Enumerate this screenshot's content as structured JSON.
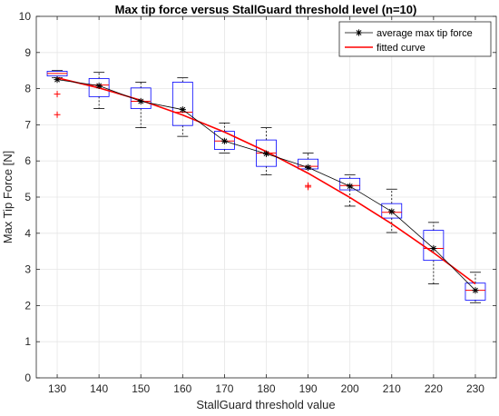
{
  "chart_data": {
    "type": "box",
    "title": "Max tip force versus StallGuard threshold level (n=10)",
    "xlabel": "StallGuard threshold value",
    "ylabel": "Max Tip Force [N]",
    "xlim": [
      125,
      235
    ],
    "ylim": [
      0,
      10
    ],
    "x_ticks": [
      130,
      140,
      150,
      160,
      170,
      180,
      190,
      200,
      210,
      220,
      230
    ],
    "y_ticks": [
      0,
      1,
      2,
      3,
      4,
      5,
      6,
      7,
      8,
      9,
      10
    ],
    "grid": true,
    "legend_position": "top-right",
    "boxes": [
      {
        "x": 130,
        "q1": 8.35,
        "median": 8.42,
        "q3": 8.48,
        "whisker_low": 8.3,
        "whisker_high": 8.5,
        "outliers": [
          7.85,
          7.28
        ]
      },
      {
        "x": 140,
        "q1": 7.78,
        "median": 8.1,
        "q3": 8.28,
        "whisker_low": 7.45,
        "whisker_high": 8.45,
        "outliers": []
      },
      {
        "x": 150,
        "q1": 7.45,
        "median": 7.65,
        "q3": 8.02,
        "whisker_low": 6.92,
        "whisker_high": 8.18,
        "outliers": []
      },
      {
        "x": 160,
        "q1": 6.98,
        "median": 7.35,
        "q3": 8.18,
        "whisker_low": 6.68,
        "whisker_high": 8.3,
        "outliers": []
      },
      {
        "x": 170,
        "q1": 6.32,
        "median": 6.55,
        "q3": 6.82,
        "whisker_low": 6.22,
        "whisker_high": 7.05,
        "outliers": []
      },
      {
        "x": 180,
        "q1": 5.85,
        "median": 6.22,
        "q3": 6.58,
        "whisker_low": 5.62,
        "whisker_high": 6.92,
        "outliers": []
      },
      {
        "x": 190,
        "q1": 5.78,
        "median": 5.85,
        "q3": 6.05,
        "whisker_low": 5.78,
        "whisker_high": 6.22,
        "outliers": [
          5.32,
          5.28
        ]
      },
      {
        "x": 200,
        "q1": 5.2,
        "median": 5.32,
        "q3": 5.52,
        "whisker_low": 4.75,
        "whisker_high": 5.62,
        "outliers": []
      },
      {
        "x": 210,
        "q1": 4.42,
        "median": 4.58,
        "q3": 4.82,
        "whisker_low": 4.02,
        "whisker_high": 5.22,
        "outliers": []
      },
      {
        "x": 220,
        "q1": 3.25,
        "median": 3.58,
        "q3": 4.08,
        "whisker_low": 2.6,
        "whisker_high": 4.3,
        "outliers": []
      },
      {
        "x": 230,
        "q1": 2.15,
        "median": 2.42,
        "q3": 2.62,
        "whisker_low": 2.08,
        "whisker_high": 2.92,
        "outliers": []
      }
    ],
    "series": [
      {
        "name": "average max tip force",
        "color": "#000000",
        "marker": "asterisk",
        "x": [
          130,
          140,
          150,
          160,
          170,
          180,
          190,
          200,
          210,
          220,
          230
        ],
        "y": [
          8.25,
          8.08,
          7.65,
          7.42,
          6.55,
          6.2,
          5.82,
          5.3,
          4.6,
          3.58,
          2.42
        ]
      },
      {
        "name": "fitted curve",
        "color": "#ff0000",
        "x": [
          130,
          140,
          150,
          160,
          170,
          180,
          190,
          200,
          210,
          220,
          230
        ],
        "y": [
          8.3,
          8.02,
          7.68,
          7.27,
          6.8,
          6.26,
          5.66,
          4.99,
          4.26,
          3.46,
          2.6
        ]
      }
    ],
    "colors": {
      "box": "#0000ff",
      "median": "#ff0000",
      "whisker": "#000000",
      "outlier": "#ff0000",
      "grid": "#e6e6e6"
    }
  }
}
